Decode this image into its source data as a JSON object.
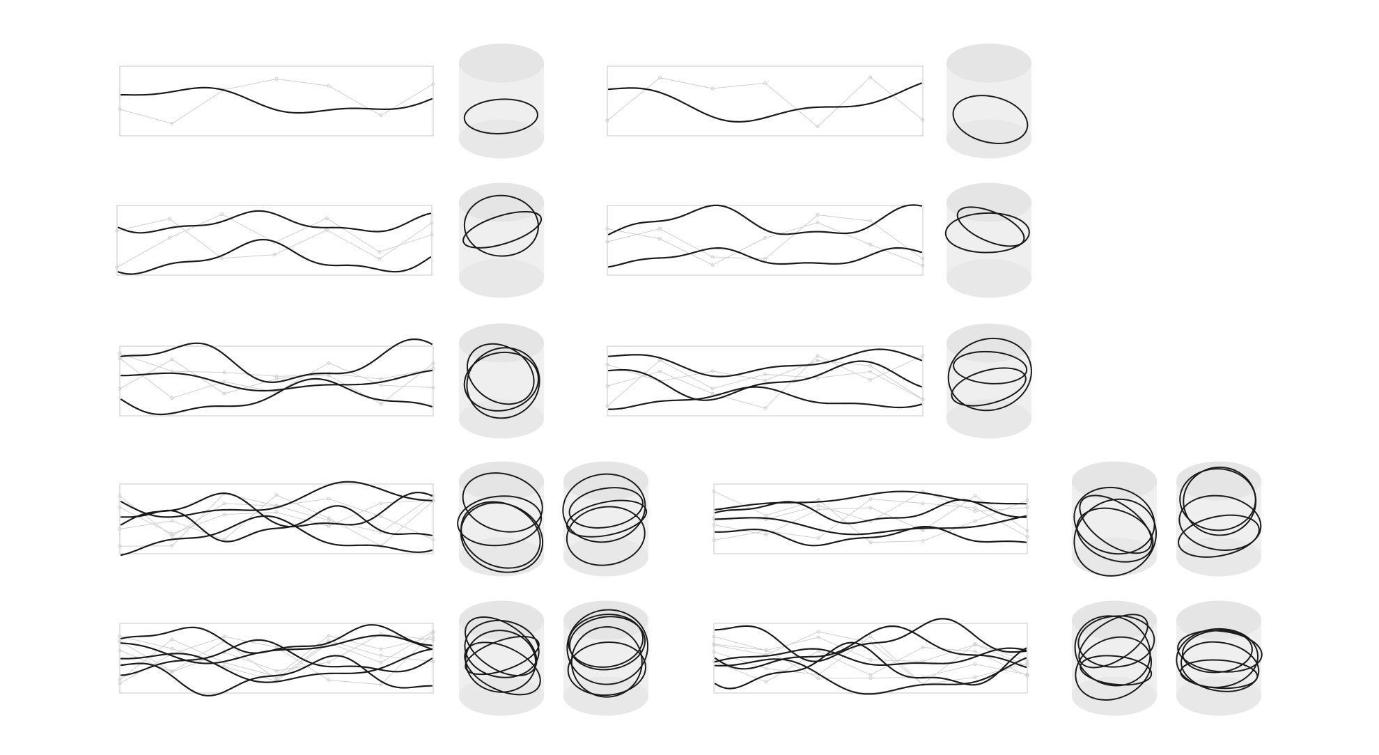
{
  "figure": {
    "background": "#ffffff",
    "panel_border_color": "#d0d0d0",
    "guide_color": "#cfcfcf",
    "curve_color": "#1a1a1a",
    "cylinder_fill": "#efefef",
    "cylinder_cap": "#e5e5e5"
  },
  "rows": [
    {
      "row_index": 1,
      "strand_count": 1,
      "examples": [
        {
          "variant": "a",
          "views": 1
        },
        {
          "variant": "b",
          "views": 1
        }
      ]
    },
    {
      "row_index": 2,
      "strand_count": 2,
      "examples": [
        {
          "variant": "a",
          "views": 1
        },
        {
          "variant": "b",
          "views": 1
        }
      ]
    },
    {
      "row_index": 3,
      "strand_count": 3,
      "examples": [
        {
          "variant": "a",
          "views": 1
        },
        {
          "variant": "b",
          "views": 1
        }
      ]
    },
    {
      "row_index": 4,
      "strand_count": 4,
      "examples": [
        {
          "variant": "a",
          "views": 2
        },
        {
          "variant": "b",
          "views": 2
        }
      ]
    },
    {
      "row_index": 5,
      "strand_count": 5,
      "examples": [
        {
          "variant": "a",
          "views": 2
        },
        {
          "variant": "b",
          "views": 2
        }
      ]
    }
  ]
}
